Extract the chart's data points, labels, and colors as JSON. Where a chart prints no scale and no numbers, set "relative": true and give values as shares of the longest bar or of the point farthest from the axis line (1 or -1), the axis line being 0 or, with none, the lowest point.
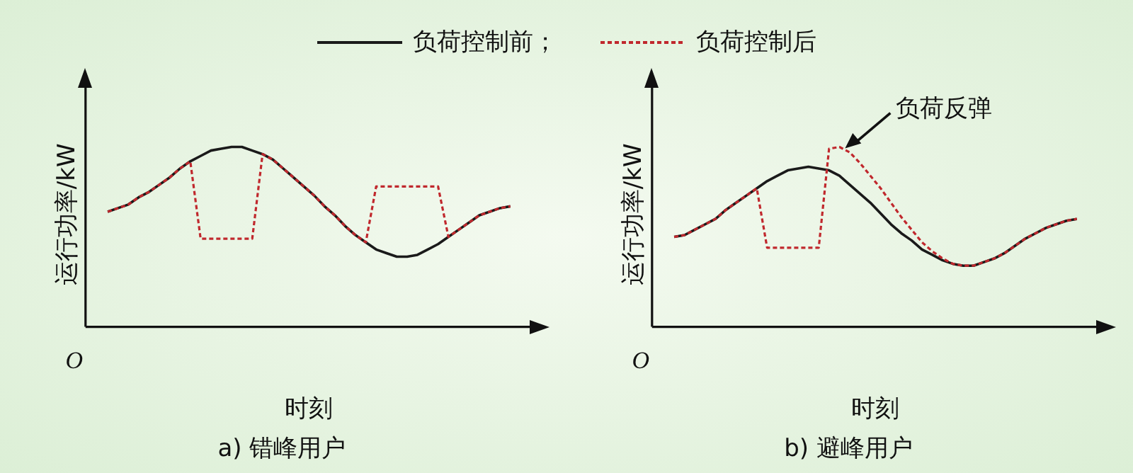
{
  "chart_data": [
    {
      "type": "line",
      "title": "a) 错峰用户",
      "xlabel": "时刻",
      "ylabel": "运行功率/kW",
      "relative": true,
      "legend": "top",
      "grid": false,
      "marker": "none",
      "annotations": [
        "O"
      ],
      "categories": [
        null,
        null,
        null,
        null,
        null,
        null,
        null,
        null,
        null,
        null,
        null,
        null,
        null,
        null,
        null,
        null,
        null,
        null,
        null,
        null,
        null,
        null,
        null,
        null,
        null,
        null,
        null,
        null,
        null,
        null,
        null,
        null,
        null,
        null,
        null,
        null,
        null,
        null,
        null,
        null
      ],
      "series": [
        {
          "name": "负荷控制前；",
          "color": "#1a1a1a",
          "line_style": "solid",
          "values": [
            0.64,
            0.66,
            0.68,
            0.72,
            0.75,
            0.79,
            0.83,
            0.88,
            0.92,
            0.95,
            0.98,
            0.99,
            1,
            1,
            0.98,
            0.96,
            0.93,
            0.88,
            0.83,
            0.78,
            0.73,
            0.67,
            0.62,
            0.56,
            0.51,
            0.47,
            0.43,
            0.41,
            0.39,
            0.39,
            0.4,
            0.43,
            0.46,
            0.5,
            0.54,
            0.58,
            0.62,
            0.64,
            0.66,
            0.67
          ]
        },
        {
          "name": "负荷控制后",
          "color": "#c0282d",
          "line_style": "dotted",
          "values": [
            0.64,
            0.66,
            0.68,
            0.72,
            0.75,
            0.79,
            0.83,
            0.88,
            0.92,
            0.49,
            0.49,
            0.49,
            0.49,
            0.49,
            0.49,
            0.96,
            0.93,
            0.88,
            0.83,
            0.78,
            0.73,
            0.67,
            0.62,
            0.56,
            0.51,
            0.47,
            0.78,
            0.78,
            0.78,
            0.78,
            0.78,
            0.78,
            0.78,
            0.5,
            0.54,
            0.58,
            0.62,
            0.64,
            0.66,
            0.67
          ]
        }
      ]
    },
    {
      "type": "line",
      "title": "b) 避峰用户",
      "xlabel": "时刻",
      "ylabel": "运行功率/kW",
      "relative": true,
      "grid": false,
      "marker": "none",
      "annotations": [
        "O",
        "负荷反弹"
      ],
      "categories": [
        null,
        null,
        null,
        null,
        null,
        null,
        null,
        null,
        null,
        null,
        null,
        null,
        null,
        null,
        null,
        null,
        null,
        null,
        null,
        null,
        null,
        null,
        null,
        null,
        null,
        null,
        null,
        null,
        null,
        null,
        null,
        null,
        null,
        null,
        null,
        null,
        null,
        null,
        null,
        null
      ],
      "series": [
        {
          "color": "#1a1a1a",
          "line_style": "solid",
          "values": [
            0.5,
            0.51,
            0.54,
            0.57,
            0.6,
            0.65,
            0.69,
            0.73,
            0.77,
            0.81,
            0.84,
            0.87,
            0.88,
            0.89,
            0.88,
            0.87,
            0.84,
            0.79,
            0.74,
            0.69,
            0.63,
            0.57,
            0.52,
            0.48,
            0.43,
            0.4,
            0.37,
            0.35,
            0.34,
            0.34,
            0.36,
            0.38,
            0.41,
            0.45,
            0.49,
            0.52,
            0.55,
            0.57,
            0.59,
            0.6
          ]
        },
        {
          "color": "#c0282d",
          "line_style": "dotted",
          "values": [
            0.5,
            0.51,
            0.54,
            0.57,
            0.6,
            0.65,
            0.69,
            0.73,
            0.77,
            0.44,
            0.44,
            0.44,
            0.44,
            0.44,
            0.44,
            0.99,
            1,
            0.97,
            0.91,
            0.84,
            0.77,
            0.69,
            0.61,
            0.54,
            0.47,
            0.42,
            0.38,
            0.35,
            0.34,
            0.34,
            0.36,
            0.38,
            0.41,
            0.45,
            0.49,
            0.52,
            0.55,
            0.57,
            0.59,
            0.6
          ]
        }
      ]
    }
  ]
}
